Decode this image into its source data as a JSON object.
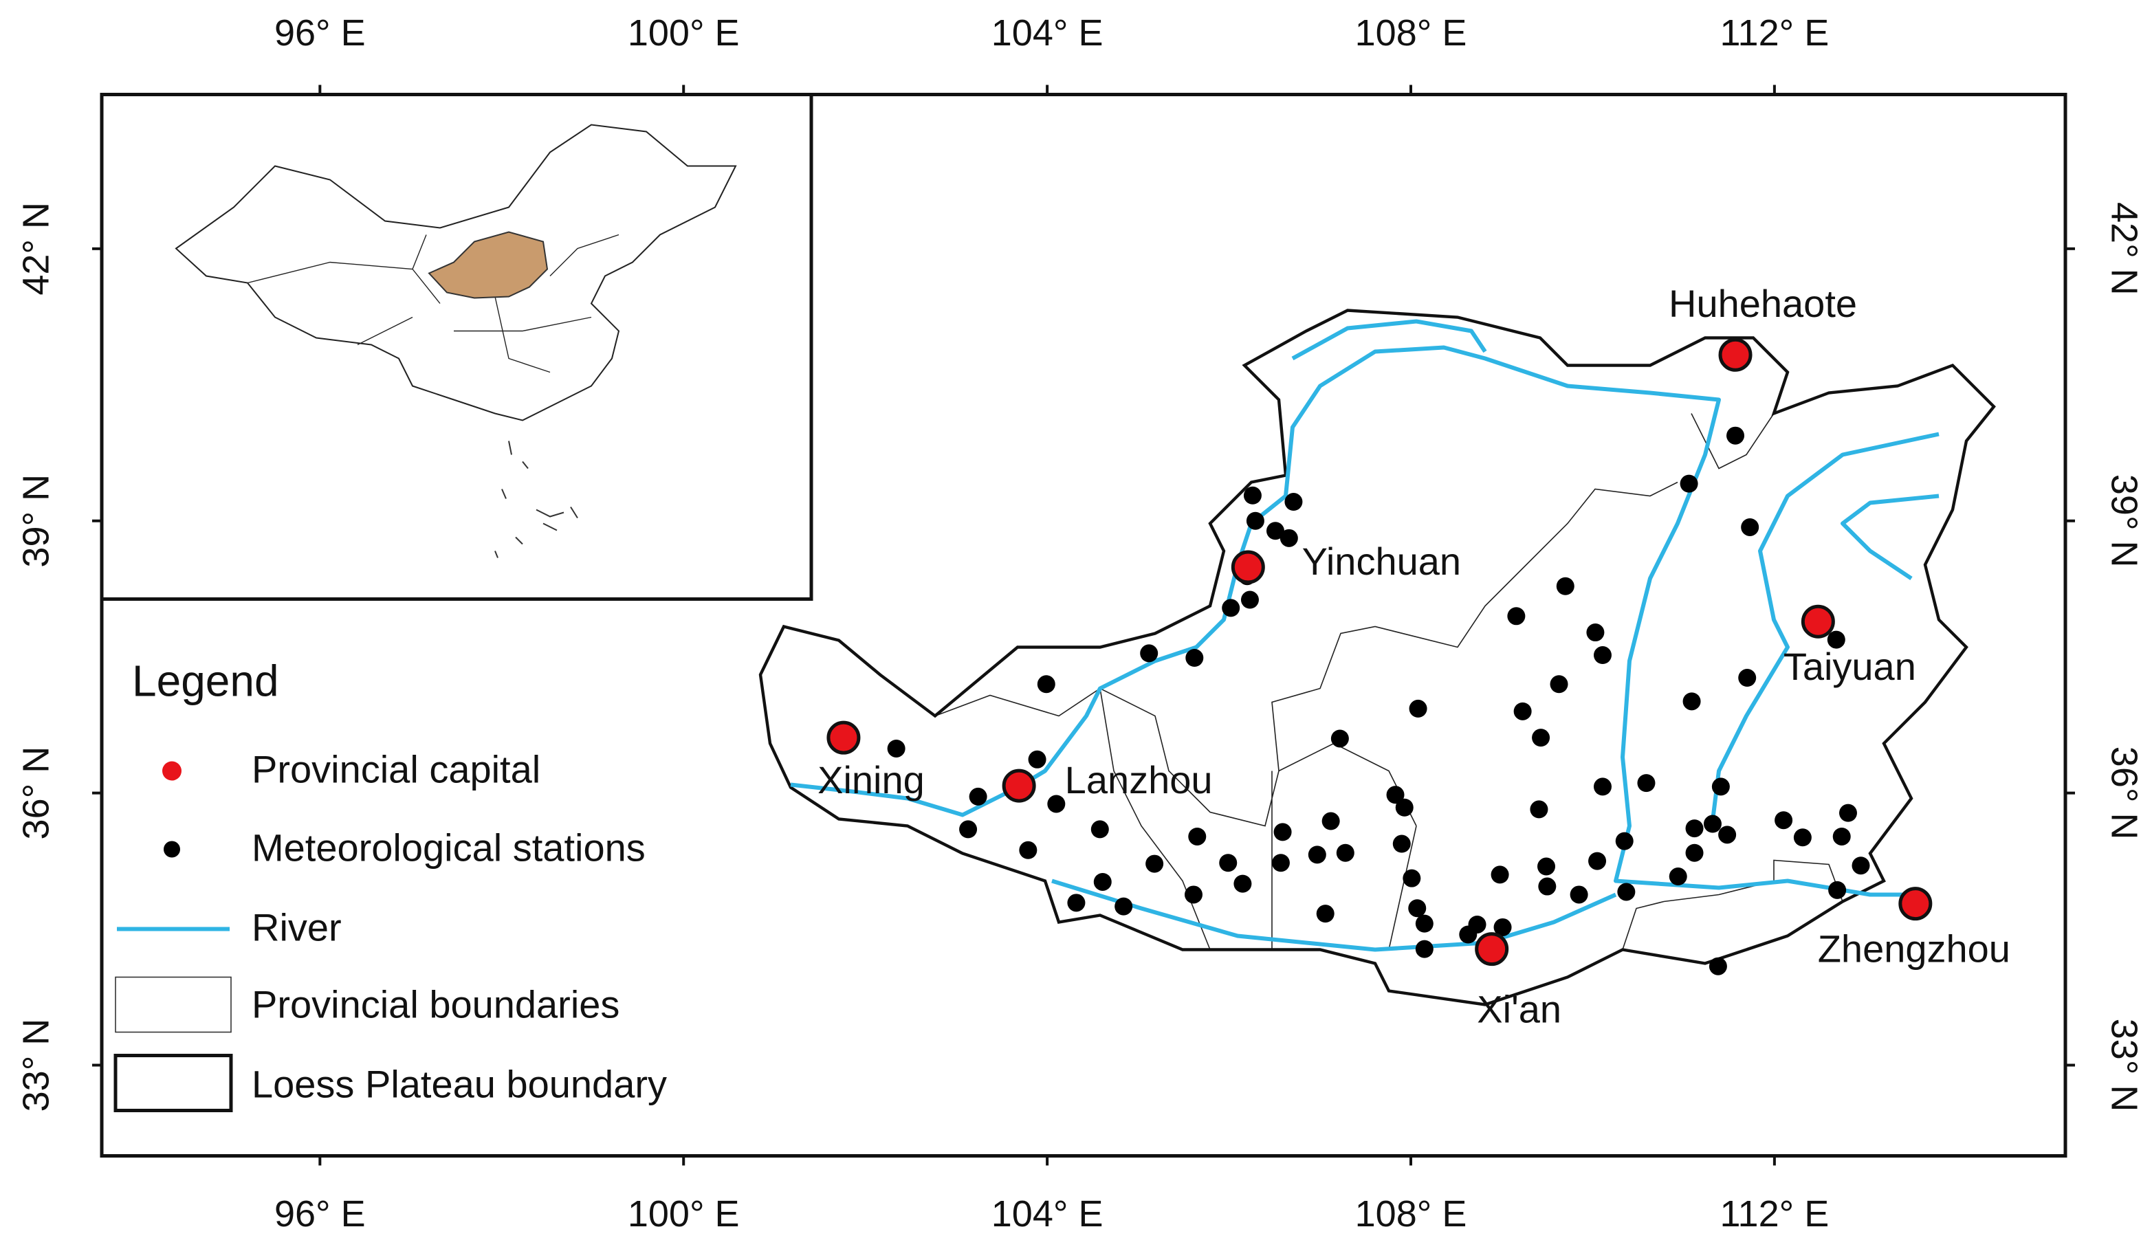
{
  "map": {
    "xlim": [
      93.6,
      115.2
    ],
    "ylim": [
      32.0,
      43.7
    ],
    "xticks": [
      {
        "value": 96,
        "label": "96° E"
      },
      {
        "value": 100,
        "label": "100° E"
      },
      {
        "value": 104,
        "label": "104° E"
      },
      {
        "value": 108,
        "label": "108° E"
      },
      {
        "value": 112,
        "label": "112° E"
      }
    ],
    "yticks": [
      {
        "value": 42,
        "label": "42° N"
      },
      {
        "value": 39,
        "label": "39° N"
      },
      {
        "value": 36,
        "label": "36° N"
      },
      {
        "value": 33,
        "label": "33° N"
      }
    ],
    "capital_color": "#e8141b",
    "station_color": "#000000",
    "river_color": "#2fb4e4",
    "cities": [
      {
        "name": "Huhehaote",
        "lon": 111.57,
        "lat": 40.83
      },
      {
        "name": "Yinchuan",
        "lon": 106.21,
        "lat": 38.49
      },
      {
        "name": "Xining",
        "lon": 101.76,
        "lat": 36.61
      },
      {
        "name": "Lanzhou",
        "lon": 103.69,
        "lat": 36.08
      },
      {
        "name": "Taiyuan",
        "lon": 112.48,
        "lat": 37.89
      },
      {
        "name": "Xi'an",
        "lon": 108.89,
        "lat": 34.28
      },
      {
        "name": "Zhengzhou",
        "lon": 113.55,
        "lat": 34.78
      }
    ],
    "stations": {
      "lon": [
        111.57,
        111.06,
        111.73,
        106.26,
        106.71,
        106.29,
        106.51,
        106.66,
        106.2,
        106.02,
        106.23,
        109.16,
        109.7,
        110.03,
        110.11,
        112.68,
        111.7,
        111.09,
        109.63,
        109.23,
        108.08,
        107.22,
        109.43,
        105.12,
        105.62,
        103.99,
        102.34,
        103.89,
        103.24,
        104.1,
        103.13,
        103.79,
        104.58,
        104.32,
        104.61,
        104.84,
        105.18,
        105.65,
        105.61,
        105.99,
        106.15,
        106.59,
        106.57,
        106.97,
        107.12,
        107.28,
        107.06,
        107.83,
        107.93,
        107.9,
        108.01,
        108.07,
        108.15,
        108.15,
        108.63,
        108.73,
        109.01,
        108.98,
        109.41,
        109.49,
        109.5,
        109.85,
        110.05,
        110.11,
        110.59,
        110.35,
        110.37,
        110.94,
        111.12,
        111.12,
        111.32,
        111.48,
        111.41,
        112.1,
        112.31,
        112.74,
        112.81,
        112.95,
        112.69,
        111.38
      ],
      "lat": [
        39.94,
        39.41,
        38.93,
        39.28,
        39.21,
        39.0,
        38.89,
        38.81,
        38.39,
        38.04,
        38.13,
        37.95,
        38.28,
        37.77,
        37.52,
        37.69,
        37.27,
        37.01,
        37.2,
        36.9,
        36.93,
        36.6,
        36.61,
        37.54,
        37.49,
        37.2,
        36.49,
        36.37,
        35.96,
        35.88,
        35.6,
        35.37,
        35.6,
        34.79,
        35.02,
        34.75,
        35.22,
        35.52,
        34.88,
        35.23,
        35.0,
        35.57,
        35.23,
        35.32,
        35.69,
        35.34,
        34.67,
        35.98,
        35.84,
        35.44,
        35.06,
        34.73,
        34.56,
        34.28,
        34.44,
        34.55,
        34.52,
        35.1,
        35.82,
        35.19,
        34.97,
        34.88,
        35.25,
        36.07,
        36.11,
        35.47,
        34.91,
        35.08,
        35.34,
        35.61,
        35.66,
        35.54,
        36.07,
        35.7,
        35.51,
        35.52,
        35.78,
        35.2,
        34.93,
        34.09
      ]
    },
    "legend": {
      "title": "Legend",
      "items": [
        "Provincial capital",
        "Meteorological stations",
        "River",
        "Provincial boundaries",
        "Loess Plateau boundary"
      ]
    }
  }
}
